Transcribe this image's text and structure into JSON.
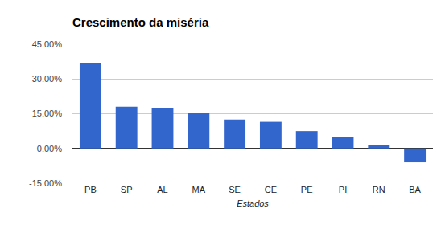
{
  "chart_data": {
    "type": "bar",
    "title": "Crescimento da miséria",
    "x_label": "Estados",
    "categories": [
      "PB",
      "SP",
      "AL",
      "MA",
      "SE",
      "CE",
      "PE",
      "PI",
      "RN",
      "BA"
    ],
    "values": [
      37,
      18,
      17.5,
      15.5,
      12.5,
      11.5,
      7.5,
      5,
      1.5,
      -6
    ],
    "color": "#3366cc",
    "ylim": [
      -15,
      45
    ],
    "yticks": [
      {
        "value": -15,
        "label": "-15.00%"
      },
      {
        "value": 0,
        "label": "0.00%"
      },
      {
        "value": 15,
        "label": "15.00%"
      },
      {
        "value": 30,
        "label": "30.00%"
      },
      {
        "value": 45,
        "label": "45.00%"
      }
    ],
    "grid": true
  }
}
